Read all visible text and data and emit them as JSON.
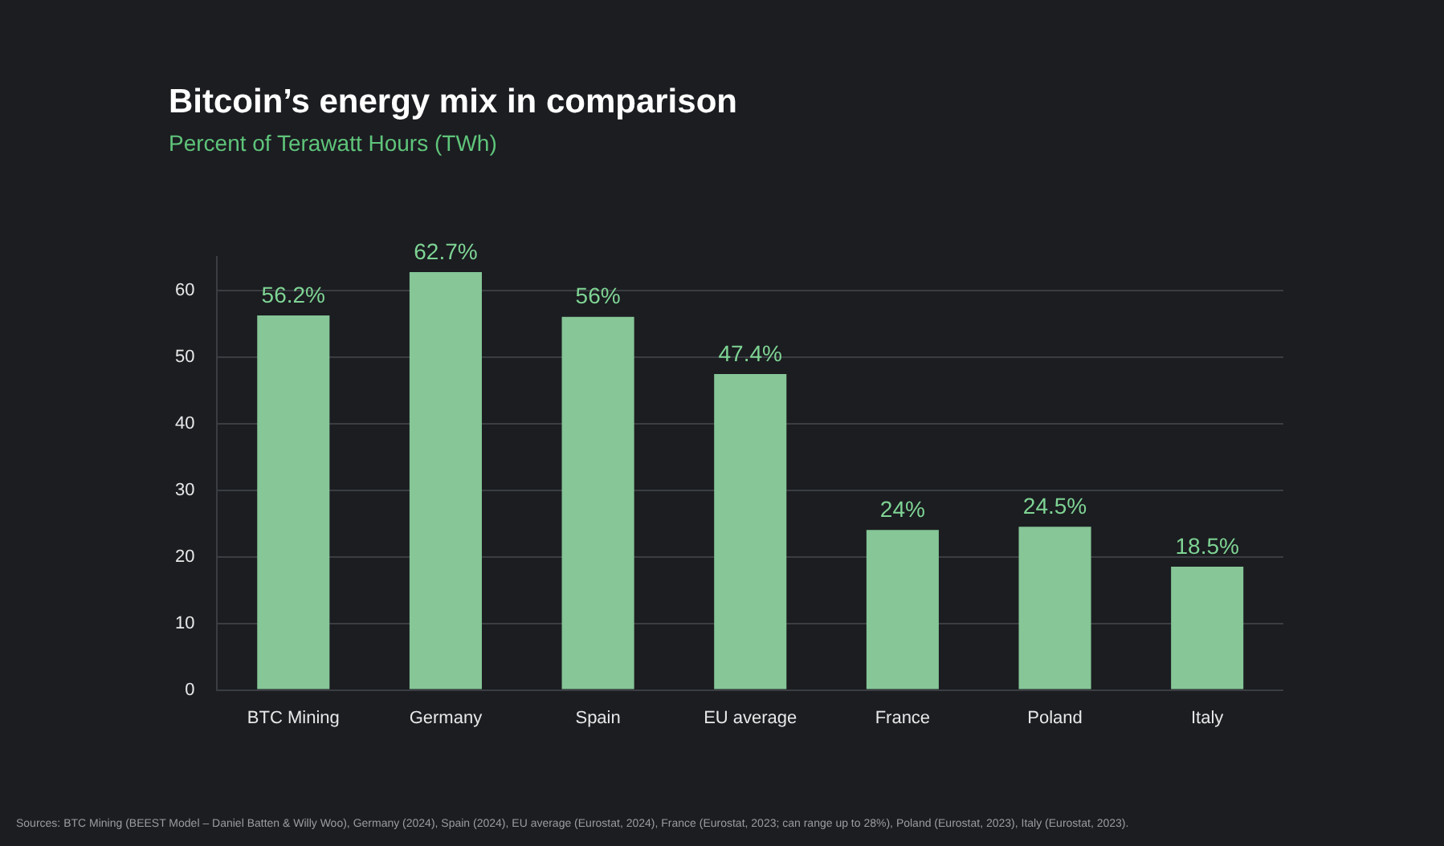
{
  "chart_data": {
    "type": "bar",
    "title": "Bitcoin’s energy mix in comparison",
    "subtitle": "Percent of Terawatt Hours (TWh)",
    "categories": [
      "BTC Mining",
      "Germany",
      "Spain",
      "EU average",
      "France",
      "Poland",
      "Italy"
    ],
    "values": [
      56.2,
      62.7,
      56,
      47.4,
      24,
      24.5,
      18.5
    ],
    "value_labels": [
      "56.2%",
      "62.7%",
      "56%",
      "47.4%",
      "24%",
      "24.5%",
      "18.5%"
    ],
    "color": "#86c697",
    "ylim": [
      0,
      65
    ],
    "yticks": [
      0,
      10,
      20,
      30,
      40,
      50,
      60
    ],
    "grid": "y",
    "annotations": [
      "Sources: BTC Mining (BEEST Model – Daniel Batten & Willy Woo), Germany (2024), Spain (2024), EU average (Eurostat, 2024), France (Eurostat, 2023; can range up to 28%), Poland (Eurostat, 2023), Italy (Eurostat, 2023)."
    ]
  }
}
